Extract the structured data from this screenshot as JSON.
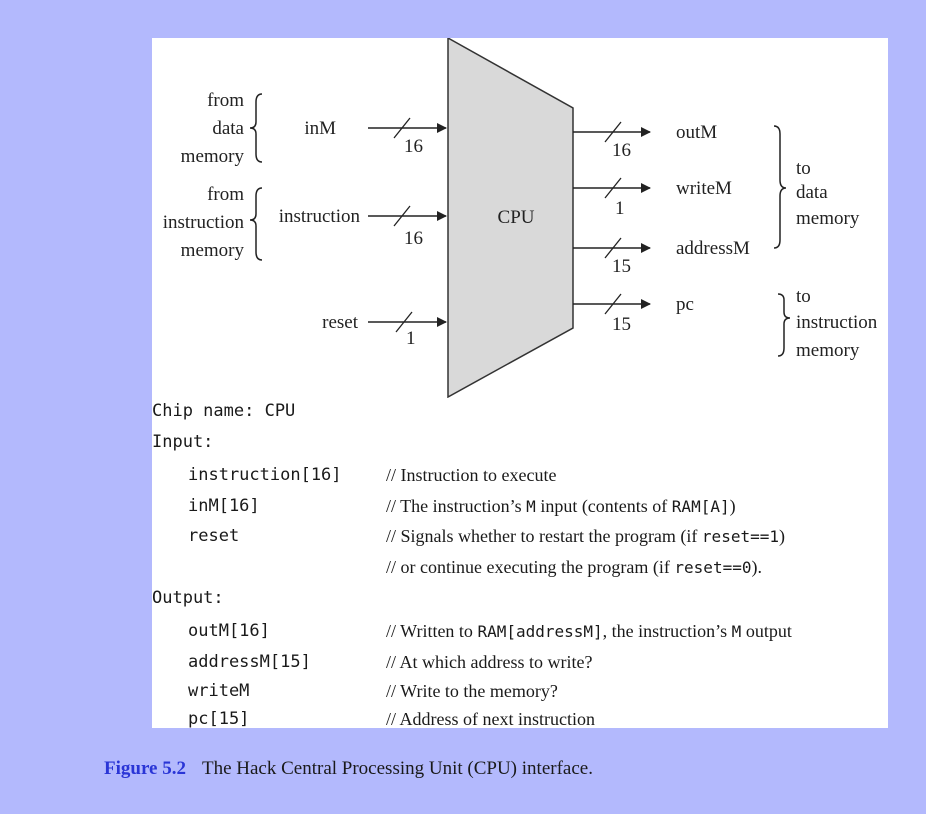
{
  "diagram": {
    "chip_label": "CPU",
    "inputs": [
      {
        "name": "inM",
        "width": "16",
        "source_lines": [
          "from",
          "data",
          "memory"
        ]
      },
      {
        "name": "instruction",
        "width": "16",
        "source_lines": [
          "from",
          "instruction",
          "memory"
        ]
      },
      {
        "name": "reset",
        "width": "1"
      }
    ],
    "outputs": [
      {
        "name": "outM",
        "width": "16"
      },
      {
        "name": "writeM",
        "width": "1"
      },
      {
        "name": "addressM",
        "width": "15"
      },
      {
        "name": "pc",
        "width": "15"
      }
    ],
    "destinations": [
      {
        "lines": [
          "to",
          "data",
          "memory"
        ]
      },
      {
        "lines": [
          "to",
          "instruction",
          "memory"
        ]
      }
    ]
  },
  "spec": {
    "chip_name_line": "Chip name: CPU",
    "input_label": "Input:",
    "output_label": "Output:",
    "inputs": [
      {
        "name": "instruction[16]",
        "comment": [
          {
            "t": "// Instruction to execute"
          }
        ]
      },
      {
        "name": "inM[16]",
        "comment": [
          {
            "t": "// The instruction’s "
          },
          {
            "t": "M",
            "code": true
          },
          {
            "t": " input (contents of "
          },
          {
            "t": "RAM[A]",
            "code": true
          },
          {
            "t": ")"
          }
        ]
      },
      {
        "name": "reset",
        "comment": [
          {
            "t": "// Signals whether to restart the program (if "
          },
          {
            "t": "reset==1",
            "code": true
          },
          {
            "t": ")"
          }
        ]
      },
      {
        "name": "",
        "comment": [
          {
            "t": "// or continue executing the program (if "
          },
          {
            "t": "reset==0",
            "code": true
          },
          {
            "t": ")."
          }
        ]
      }
    ],
    "outputs": [
      {
        "name": "outM[16]",
        "comment": [
          {
            "t": "// Written to "
          },
          {
            "t": "RAM[addressM]",
            "code": true
          },
          {
            "t": ", the instruction’s "
          },
          {
            "t": "M",
            "code": true
          },
          {
            "t": " output"
          }
        ]
      },
      {
        "name": "addressM[15]",
        "comment": [
          {
            "t": "// At which address to write?"
          }
        ]
      },
      {
        "name": "writeM",
        "comment": [
          {
            "t": "// Write to the memory?"
          }
        ]
      },
      {
        "name": "pc[15]",
        "comment": [
          {
            "t": "// Address of next instruction"
          }
        ]
      }
    ]
  },
  "caption": {
    "figure_number": "Figure 5.2",
    "text": "The Hack Central Processing Unit (CPU) interface."
  },
  "colors": {
    "page_background": "#b3b9fd",
    "chip_fill": "#d9d9d9",
    "caption_number": "#2a35d6"
  }
}
